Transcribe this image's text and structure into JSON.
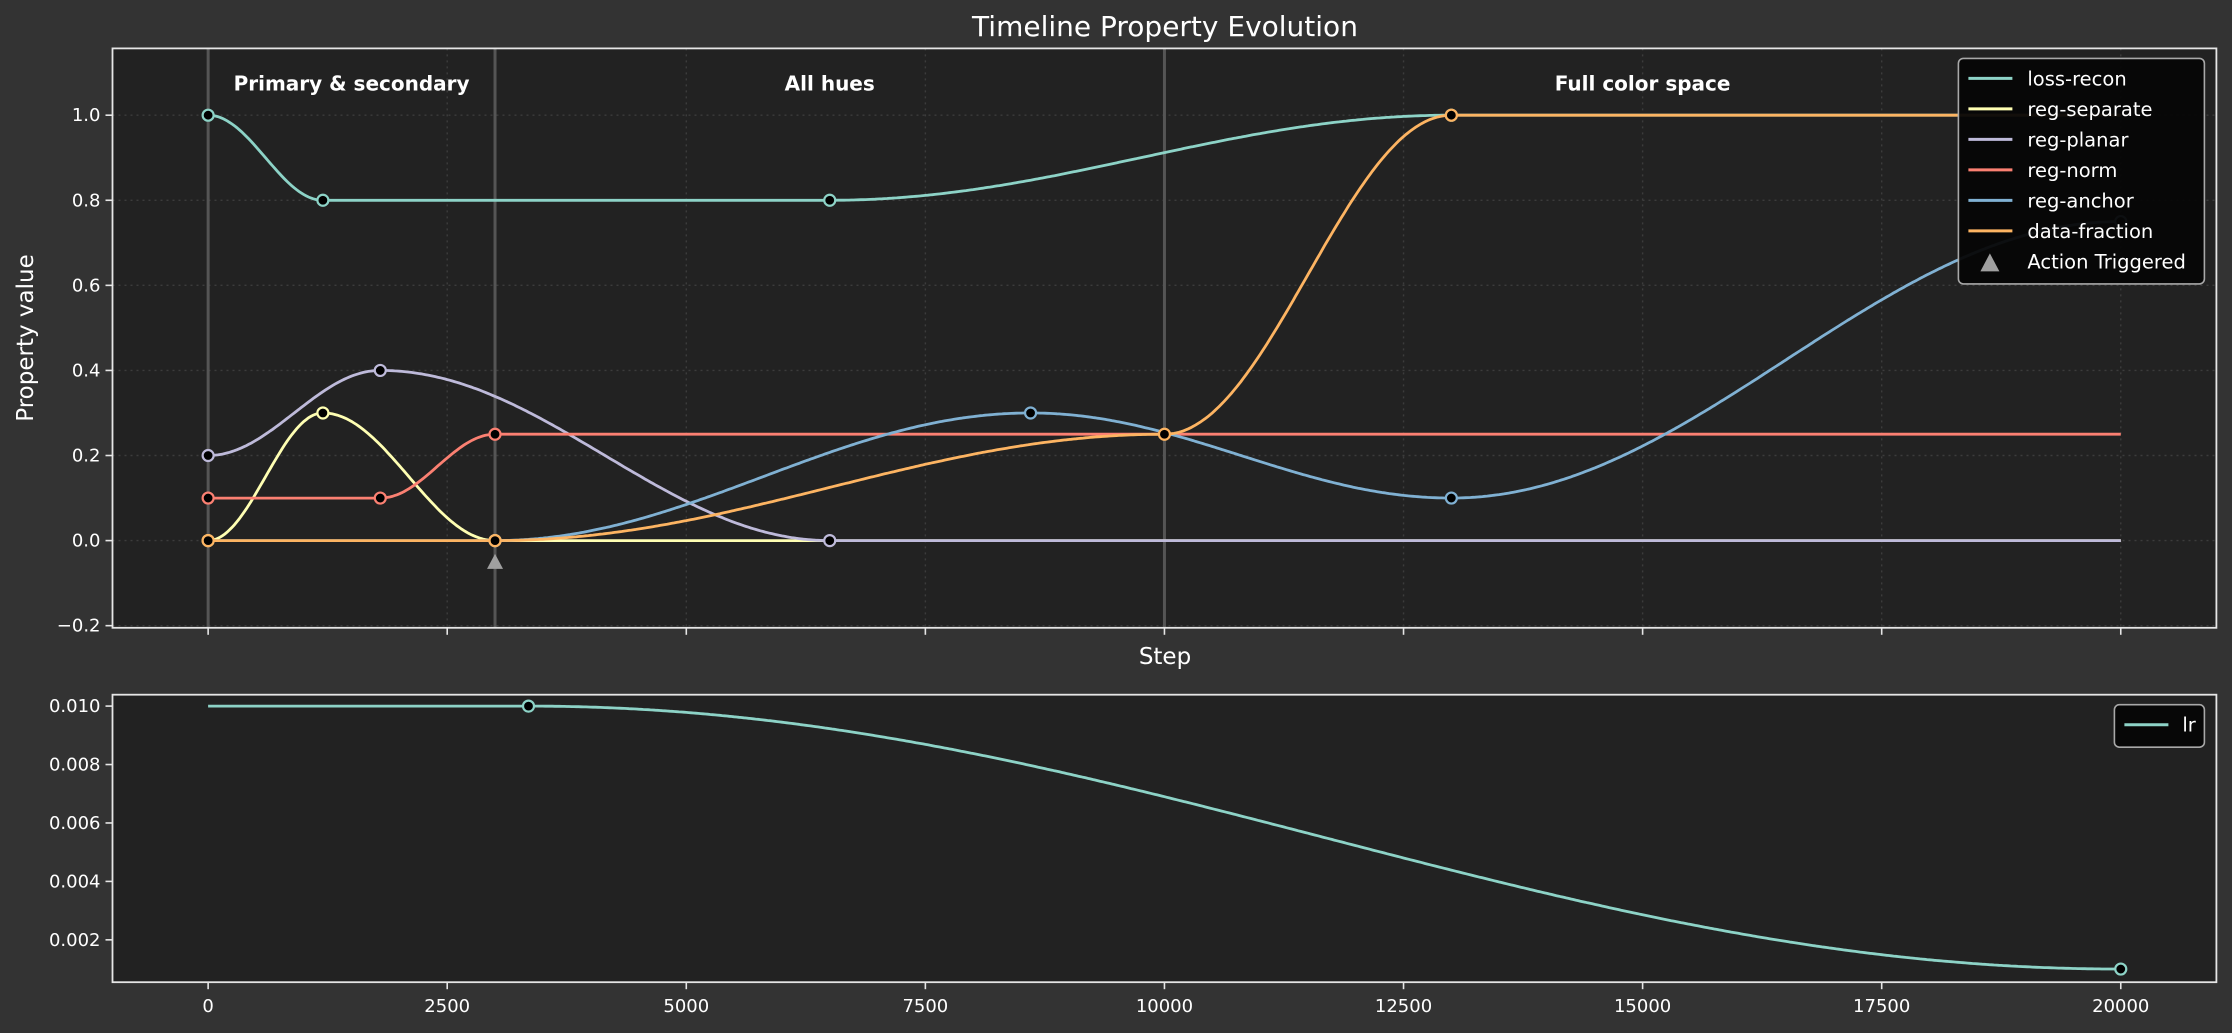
{
  "chart_data": [
    {
      "type": "line",
      "title": "Timeline Property Evolution",
      "xlabel": "Step",
      "ylabel": "Property value",
      "xlim": [
        -1000,
        21000
      ],
      "ylim": [
        -0.205,
        1.157
      ],
      "x_end": 20000,
      "xticks": [
        0,
        2500,
        5000,
        7500,
        10000,
        12500,
        15000,
        17500,
        20000
      ],
      "yticks": [
        -0.2,
        0.0,
        0.2,
        0.4,
        0.6,
        0.8,
        1.0
      ],
      "ytick_labels": [
        "−0.2",
        "0.0",
        "0.2",
        "0.4",
        "0.6",
        "0.8",
        "1.0"
      ],
      "grid": true,
      "legend_placement": "upper-right",
      "phases": [
        {
          "start": 0,
          "label": "Primary & secondary",
          "label_x": 1500
        },
        {
          "start": 3000,
          "label": "All hues",
          "label_x": 6500
        },
        {
          "start": 10000,
          "label": "Full color space",
          "label_x": 15000
        }
      ],
      "series": [
        {
          "name": "loss-recon",
          "color": "#8dd3c7",
          "keyframes": [
            [
              0,
              1.0
            ],
            [
              1200,
              0.8
            ],
            [
              6500,
              0.8
            ],
            [
              13000,
              1.0
            ]
          ]
        },
        {
          "name": "reg-separate",
          "color": "#ffffb3",
          "keyframes": [
            [
              0,
              0.0
            ],
            [
              1200,
              0.3
            ],
            [
              3000,
              0.0
            ]
          ]
        },
        {
          "name": "reg-planar",
          "color": "#bebada",
          "keyframes": [
            [
              0,
              0.2
            ],
            [
              1800,
              0.4
            ],
            [
              6500,
              0.0
            ]
          ]
        },
        {
          "name": "reg-norm",
          "color": "#fb8072",
          "keyframes": [
            [
              0,
              0.1
            ],
            [
              1800,
              0.1
            ],
            [
              3000,
              0.25
            ]
          ]
        },
        {
          "name": "reg-anchor",
          "color": "#80b1d3",
          "keyframes": [
            [
              3000,
              0.0
            ],
            [
              8600,
              0.3
            ],
            [
              13000,
              0.1
            ],
            [
              20000,
              0.75
            ]
          ]
        },
        {
          "name": "data-fraction",
          "color": "#fdb462",
          "keyframes": [
            [
              0,
              0.0
            ],
            [
              3000,
              0.0
            ],
            [
              10000,
              0.25
            ],
            [
              13000,
              1.0
            ]
          ]
        }
      ],
      "events": [
        {
          "name": "Action Triggered",
          "x": 3000,
          "y": -0.05,
          "marker": "triangle-up",
          "color": "#a0a0a0"
        }
      ]
    },
    {
      "type": "line",
      "xlim": [
        -1000,
        21000
      ],
      "ylim": [
        0.00055,
        0.01039
      ],
      "x_end": 20000,
      "xticks": [
        0,
        2500,
        5000,
        7500,
        10000,
        12500,
        15000,
        17500,
        20000
      ],
      "yticks": [
        0.002,
        0.004,
        0.006,
        0.008,
        0.01
      ],
      "ytick_labels": [
        "0.002",
        "0.004",
        "0.006",
        "0.008",
        "0.010"
      ],
      "grid": false,
      "legend_placement": "upper-right",
      "series": [
        {
          "name": "lr",
          "color": "#8dd3c7",
          "keyframes": [
            [
              0,
              0.01
            ],
            [
              3350,
              0.01
            ],
            [
              20000,
              0.001
            ]
          ],
          "markers_from": 1
        }
      ]
    }
  ]
}
